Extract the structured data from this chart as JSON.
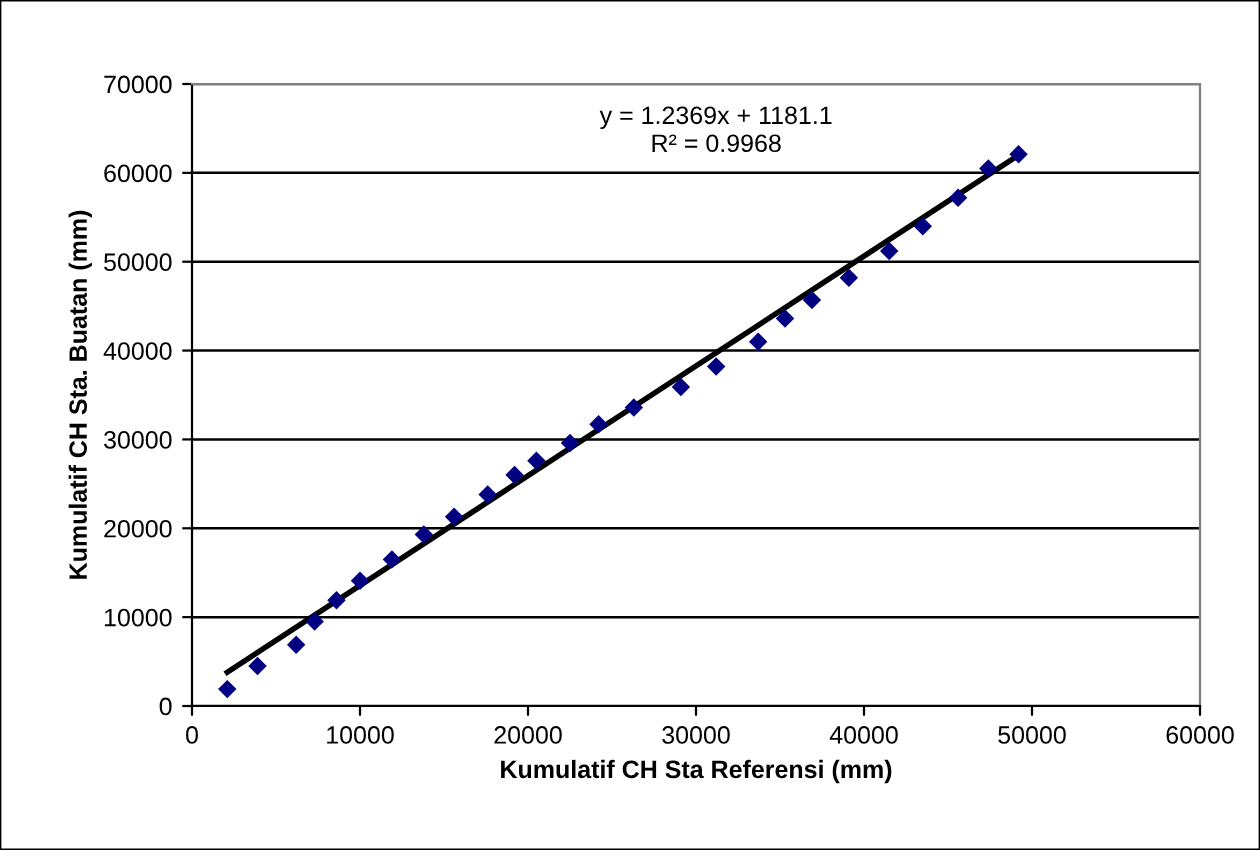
{
  "chart_data": {
    "type": "scatter",
    "xlabel": "Kumulatif CH Sta Referensi (mm)",
    "ylabel": "Kumulatif CH Sta. Buatan (mm)",
    "xlim": [
      0,
      60000
    ],
    "ylim": [
      0,
      70000
    ],
    "xticks": [
      0,
      10000,
      20000,
      30000,
      40000,
      50000,
      60000
    ],
    "yticks": [
      0,
      10000,
      20000,
      30000,
      40000,
      50000,
      60000,
      70000
    ],
    "grid": "y",
    "marker": "diamond",
    "legend": false,
    "annotations": [
      "y = 1.2369x + 1181.1",
      "R² = 0.9968"
    ],
    "series": [
      {
        "color": "#000080",
        "x": [
          2100,
          3900,
          6200,
          7300,
          8600,
          10000,
          11900,
          13800,
          15600,
          17600,
          19200,
          20500,
          22500,
          24200,
          26300,
          29100,
          31200,
          33700,
          35300,
          36900,
          39100,
          41500,
          43500,
          45600,
          47400,
          49200
        ],
        "values": [
          1900,
          4500,
          6900,
          9500,
          11900,
          14100,
          16500,
          19300,
          21300,
          23800,
          26000,
          27600,
          29600,
          31700,
          33600,
          35900,
          38200,
          41000,
          43600,
          45700,
          48200,
          51200,
          54000,
          57200,
          60500,
          62100
        ]
      },
      {
        "type": "line",
        "marker": "none",
        "color": "#000000",
        "x": [
          2100,
          49200
        ],
        "values": [
          3800,
          62000
        ]
      }
    ]
  }
}
